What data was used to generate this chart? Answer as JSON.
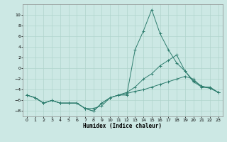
{
  "title": "",
  "xlabel": "Humidex (Indice chaleur)",
  "ylabel": "",
  "background_color": "#cce8e4",
  "grid_color": "#b0d4cc",
  "line_color": "#2e7d6e",
  "xlim": [
    -0.5,
    23.5
  ],
  "ylim": [
    -9,
    12
  ],
  "yticks": [
    -8,
    -6,
    -4,
    -2,
    0,
    2,
    4,
    6,
    8,
    10
  ],
  "xticks": [
    0,
    1,
    2,
    3,
    4,
    5,
    6,
    7,
    8,
    9,
    10,
    11,
    12,
    13,
    14,
    15,
    16,
    17,
    18,
    19,
    20,
    21,
    22,
    23
  ],
  "series": [
    {
      "x": [
        0,
        1,
        2,
        3,
        4,
        5,
        6,
        7,
        8,
        9,
        10,
        11,
        12,
        13,
        14,
        15,
        16,
        17,
        18,
        19,
        20,
        21,
        22,
        23
      ],
      "y": [
        -5.0,
        -5.5,
        -6.5,
        -6.0,
        -6.5,
        -6.5,
        -6.5,
        -7.5,
        -7.5,
        -7.0,
        -5.5,
        -5.0,
        -5.0,
        3.5,
        7.0,
        11.0,
        6.5,
        3.5,
        1.0,
        -0.5,
        -2.5,
        -3.5,
        -3.5,
        -4.5
      ]
    },
    {
      "x": [
        0,
        1,
        2,
        3,
        4,
        5,
        6,
        7,
        8,
        9,
        10,
        11,
        12,
        13,
        14,
        15,
        16,
        17,
        18,
        19,
        20,
        21,
        22,
        23
      ],
      "y": [
        -5.0,
        -5.5,
        -6.5,
        -6.0,
        -6.5,
        -6.5,
        -6.5,
        -7.5,
        -8.0,
        -6.5,
        -5.5,
        -5.0,
        -4.5,
        -3.5,
        -2.0,
        -1.0,
        0.5,
        1.5,
        2.5,
        -0.5,
        -2.3,
        -3.3,
        -3.7,
        -4.5
      ]
    },
    {
      "x": [
        0,
        1,
        2,
        3,
        4,
        5,
        6,
        7,
        8,
        9,
        10,
        11,
        12,
        13,
        14,
        15,
        16,
        17,
        18,
        19,
        20,
        21,
        22,
        23
      ],
      "y": [
        -5.0,
        -5.5,
        -6.5,
        -6.0,
        -6.5,
        -6.5,
        -6.5,
        -7.5,
        -8.0,
        -6.5,
        -5.5,
        -5.0,
        -4.7,
        -4.3,
        -4.0,
        -3.5,
        -3.0,
        -2.5,
        -2.0,
        -1.5,
        -2.0,
        -3.5,
        -3.7,
        -4.5
      ]
    }
  ]
}
